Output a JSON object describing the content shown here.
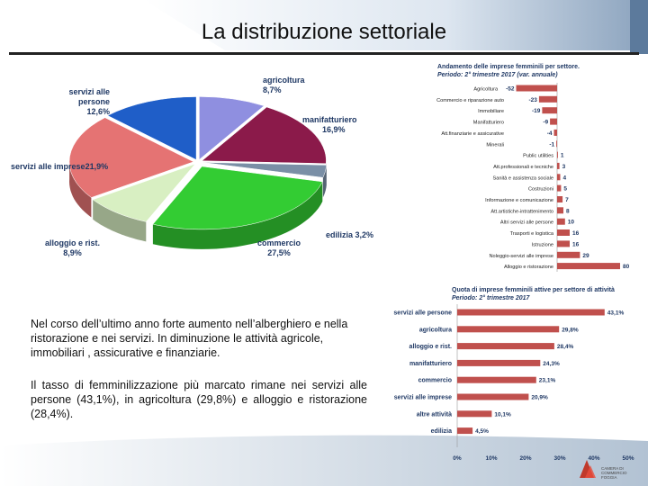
{
  "title": "La distribuzione settoriale",
  "paragraph_1": "Nel corso dell’ultimo anno forte aumento nell’alberghiero e nella ristorazione e nei servizi. In diminuzione le attività agricole, immobiliari , assicurative e finanziarie.",
  "paragraph_2": "Il tasso di femminilizzazione più marcato rimane nei servizi alle persone (43,1%), in agricoltura (29,8%) e alloggio e ristorazione (28,4%).",
  "logo_text": "CAMERA DI COMMERCIO FOGGIA",
  "colors": {
    "bar": "#c0504d",
    "pie_agricoltura": "#8f8fe0",
    "pie_manifatturiero": "#8b1a4a",
    "pie_edilizia": "#7a8fa6",
    "pie_commercio": "#33cc33",
    "pie_alloggio": "#d8efc2",
    "pie_servizi_imprese": "#e57373",
    "pie_servizi_persone": "#1f5ec8"
  },
  "chart_data": [
    {
      "type": "pie",
      "title": "",
      "labels": [
        "agricoltura",
        "manifatturiero",
        "edilizia",
        "commercio",
        "alloggio e rist.",
        "servizi alle imprese",
        "servizi alle persone"
      ],
      "value_labels": [
        "8,7%",
        "16,9%",
        "3,2%",
        "27,5%",
        "8,9%",
        "21,9%",
        "12,6%"
      ],
      "values": [
        8.7,
        16.9,
        3.2,
        27.5,
        8.9,
        21.9,
        12.6
      ]
    },
    {
      "type": "bar",
      "orientation": "horizontal",
      "title": "Andamento delle imprese femminili per settore.",
      "subtitle": "Periodo: 2° trimestre 2017 (var. annuale)",
      "categories": [
        "Agricoltura",
        "Commercio e riparazione auto",
        "Immobiliare",
        "Manifatturiero",
        "Att.finanziarie e assicurative",
        "Minerali",
        "Public utilities",
        "Att.professionali e tecniche",
        "Sanità e assistenza sociale",
        "Costruzioni",
        "Informazione e comunicazione",
        "Att.artistiche-intrattenimento",
        "Altri servizi alle persone",
        "Trasporti e logistica",
        "Istruzione",
        "Noleggio-servizi alle imprese",
        "Alloggio e ristorazione"
      ],
      "values": [
        -52,
        -23,
        -19,
        -9,
        -4,
        -1,
        1,
        3,
        4,
        5,
        7,
        8,
        10,
        16,
        16,
        29,
        80
      ],
      "value_labels": [
        "-52",
        "-23",
        "-19",
        "-9",
        "-4",
        "-1",
        "1",
        "3",
        "4",
        "5",
        "7",
        "8",
        "10",
        "16",
        "16",
        "29",
        "80"
      ],
      "xlim": [
        -55,
        82
      ]
    },
    {
      "type": "bar",
      "orientation": "horizontal",
      "title": "Quota di imprese femminili attive per settore di attività",
      "subtitle": "Periodo: 2° trimestre 2017",
      "categories": [
        "servizi alle persone",
        "agricoltura",
        "alloggio e rist.",
        "manifatturiero",
        "commercio",
        "servizi alle imprese",
        "altre attività",
        "edilizia"
      ],
      "values": [
        43.1,
        29.8,
        28.4,
        24.3,
        23.1,
        20.9,
        10.1,
        4.5
      ],
      "value_labels": [
        "43,1%",
        "29,8%",
        "28,4%",
        "24,3%",
        "23,1%",
        "20,9%",
        "10,1%",
        "4,5%"
      ],
      "ticks": [
        "0%",
        "10%",
        "20%",
        "30%",
        "40%",
        "50%"
      ],
      "xlim": [
        0,
        50
      ]
    }
  ]
}
